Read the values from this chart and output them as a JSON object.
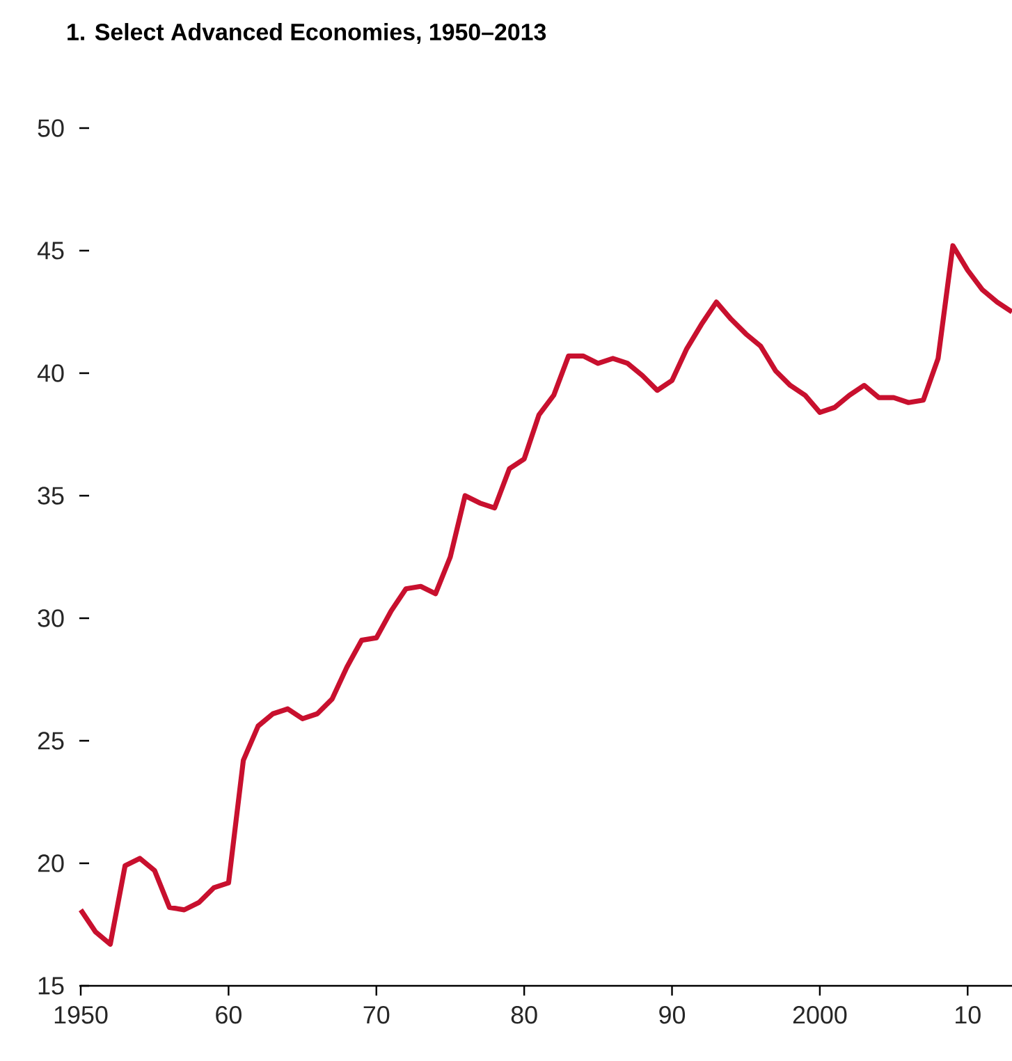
{
  "chart_data": {
    "type": "line",
    "title": "1. Select Advanced Economies, 1950–2013",
    "x": [
      1950,
      1951,
      1952,
      1953,
      1954,
      1955,
      1956,
      1957,
      1958,
      1959,
      1960,
      1961,
      1962,
      1963,
      1964,
      1965,
      1966,
      1967,
      1968,
      1969,
      1970,
      1971,
      1972,
      1973,
      1974,
      1975,
      1976,
      1977,
      1978,
      1979,
      1980,
      1981,
      1982,
      1983,
      1984,
      1985,
      1986,
      1987,
      1988,
      1989,
      1990,
      1991,
      1992,
      1993,
      1994,
      1995,
      1996,
      1997,
      1998,
      1999,
      2000,
      2001,
      2002,
      2003,
      2004,
      2005,
      2006,
      2007,
      2008,
      2009,
      2010,
      2011,
      2012,
      2013
    ],
    "series": [
      {
        "color": "#c8102e",
        "values": [
          18.1,
          17.2,
          16.7,
          19.9,
          20.2,
          19.7,
          18.2,
          18.1,
          18.4,
          19.0,
          19.2,
          24.2,
          25.6,
          26.1,
          26.3,
          25.9,
          26.1,
          26.7,
          28.0,
          29.1,
          29.2,
          30.3,
          31.2,
          31.3,
          31.0,
          32.5,
          35.0,
          34.7,
          34.5,
          36.1,
          36.5,
          38.3,
          39.1,
          40.7,
          40.7,
          40.4,
          40.6,
          40.4,
          39.9,
          39.3,
          39.7,
          41.0,
          42.0,
          42.9,
          42.2,
          41.6,
          41.1,
          40.1,
          39.5,
          39.1,
          38.4,
          38.6,
          39.1,
          39.5,
          39.0,
          39.0,
          38.8,
          38.9,
          40.6,
          45.2,
          44.2,
          43.4,
          42.9,
          42.5
        ]
      }
    ],
    "xlim": [
      1950,
      2013
    ],
    "xticks": [
      1950,
      {
        "value": 1960,
        "label": "60"
      },
      {
        "value": 1970,
        "label": "70"
      },
      {
        "value": 1980,
        "label": "80"
      },
      {
        "value": 1990,
        "label": "90"
      },
      2000,
      {
        "value": 2010,
        "label": "10"
      }
    ],
    "ylim": [
      15,
      50
    ],
    "yticks": [
      15,
      20,
      25,
      30,
      35,
      40,
      45,
      50
    ],
    "grid": false,
    "legend": false,
    "marker": "none",
    "line_style": "solid"
  }
}
